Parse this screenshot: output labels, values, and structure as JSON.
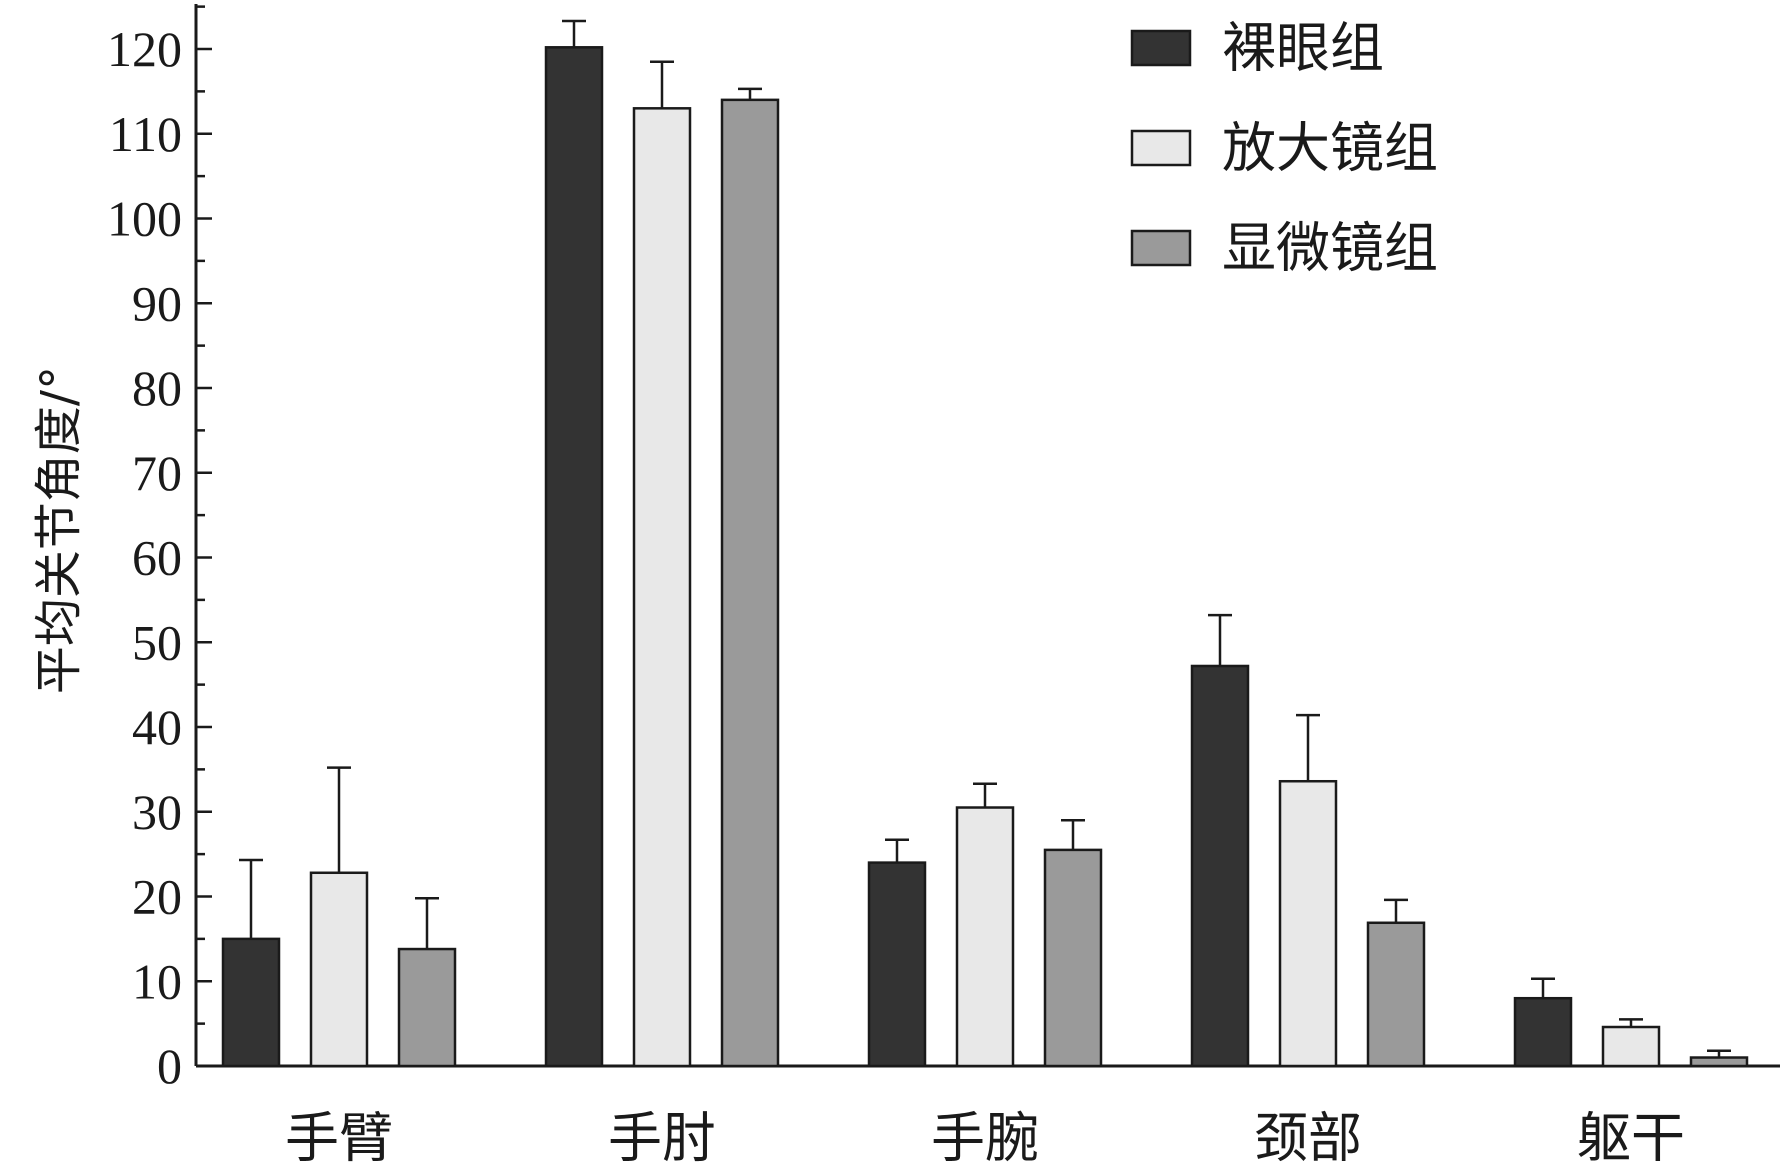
{
  "chart_data": {
    "type": "bar",
    "title": "",
    "xlabel": "",
    "ylabel": "平均关节角度/°",
    "ylim": [
      0,
      125
    ],
    "yticks": [
      0,
      10,
      20,
      30,
      40,
      50,
      60,
      70,
      80,
      90,
      100,
      110,
      120
    ],
    "y_minor_step": 5,
    "grid": false,
    "legend_position": "top-right",
    "categories": [
      "手臂",
      "手肘",
      "手腕",
      "颈部",
      "躯干"
    ],
    "series": [
      {
        "name": "裸眼组",
        "color": "#333333",
        "values": [
          15,
          120.2,
          24,
          47.2,
          8
        ],
        "errors": [
          9.3,
          3.1,
          2.7,
          6,
          2.3
        ]
      },
      {
        "name": "放大镜组",
        "color": "#e8e8e8",
        "values": [
          22.8,
          113,
          30.5,
          33.6,
          4.6
        ],
        "errors": [
          12.4,
          5.5,
          2.8,
          7.8,
          0.9
        ]
      },
      {
        "name": "显微镜组",
        "color": "#9a9a9a",
        "values": [
          13.8,
          114,
          25.5,
          16.9,
          1
        ],
        "errors": [
          6,
          1.3,
          3.5,
          2.7,
          0.8
        ]
      }
    ]
  }
}
